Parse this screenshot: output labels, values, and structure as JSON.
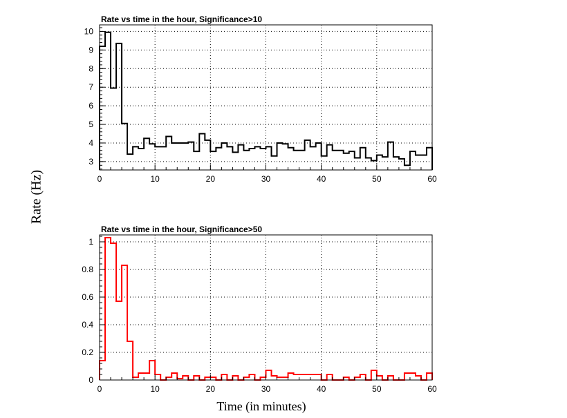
{
  "figure": {
    "ylabel": "Rate (Hz)",
    "xlabel": "Time (in minutes)"
  },
  "chart_data": [
    {
      "type": "line",
      "style": "step-histogram",
      "title": "Rate vs time in the hour, Significance>10",
      "xlim": [
        0,
        60
      ],
      "ylim": [
        2.55,
        10.35
      ],
      "xticks": [
        "0",
        "10",
        "20",
        "30",
        "40",
        "50",
        "60"
      ],
      "yticks": [
        "3",
        "4",
        "5",
        "6",
        "7",
        "8",
        "9",
        "10"
      ],
      "ytick_values": [
        3,
        4,
        5,
        6,
        7,
        8,
        9,
        10
      ],
      "grid": true,
      "color": "#000000",
      "bin_width": 1,
      "values": [
        9.2,
        9.95,
        6.95,
        9.35,
        5.05,
        3.4,
        3.8,
        3.7,
        4.25,
        3.95,
        3.8,
        3.8,
        4.35,
        4.0,
        4.0,
        4.0,
        4.05,
        3.55,
        4.5,
        4.15,
        3.55,
        3.75,
        4.0,
        3.8,
        3.5,
        3.9,
        3.6,
        3.7,
        3.8,
        3.7,
        3.8,
        3.3,
        4.0,
        3.95,
        3.75,
        3.6,
        3.6,
        4.15,
        3.8,
        4.0,
        3.3,
        3.9,
        3.6,
        3.6,
        3.45,
        3.55,
        3.2,
        3.75,
        3.2,
        3.05,
        3.35,
        3.25,
        4.05,
        3.25,
        3.15,
        2.8,
        3.55,
        3.35,
        3.35,
        3.75
      ]
    },
    {
      "type": "line",
      "style": "step-histogram",
      "title": "Rate vs time in the hour, Significance>50",
      "xlim": [
        0,
        60
      ],
      "ylim": [
        0,
        1.05
      ],
      "xticks": [
        "0",
        "10",
        "20",
        "30",
        "40",
        "50",
        "60"
      ],
      "yticks": [
        "0",
        "0.2",
        "0.4",
        "0.6",
        "0.8",
        "1"
      ],
      "ytick_values": [
        0,
        0.2,
        0.4,
        0.6,
        0.8,
        1
      ],
      "grid": true,
      "color": "#ff0000",
      "bin_width": 1,
      "values": [
        0.14,
        1.03,
        0.99,
        0.57,
        0.83,
        0.28,
        0.02,
        0.05,
        0.05,
        0.14,
        0.04,
        0.0,
        0.02,
        0.05,
        0.01,
        0.03,
        0.0,
        0.03,
        0.0,
        0.02,
        0.02,
        0.0,
        0.04,
        0.0,
        0.03,
        0.0,
        0.02,
        0.04,
        0.0,
        0.02,
        0.07,
        0.03,
        0.02,
        0.02,
        0.05,
        0.04,
        0.04,
        0.04,
        0.04,
        0.04,
        0.0,
        0.04,
        0.0,
        0.0,
        0.02,
        0.0,
        0.02,
        0.04,
        0.0,
        0.07,
        0.03,
        0.0,
        0.03,
        0.0,
        0.0,
        0.05,
        0.05,
        0.03,
        0.0,
        0.05
      ]
    }
  ]
}
